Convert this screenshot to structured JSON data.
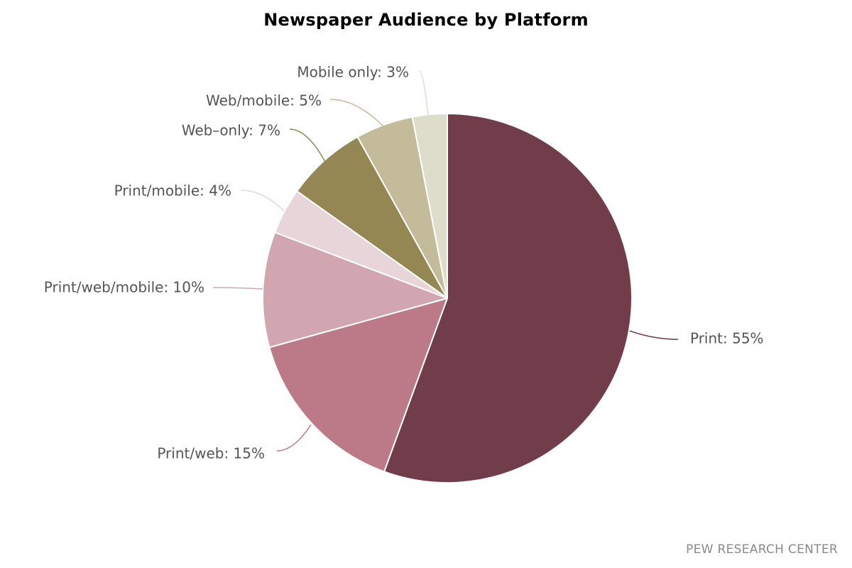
{
  "chart_data": {
    "type": "pie",
    "title": "Newspaper Audience by Platform",
    "slices": [
      {
        "label": "Print",
        "value": 55,
        "display": "Print: 55%",
        "color": "#723D4A"
      },
      {
        "label": "Print/web",
        "value": 15,
        "display": "Print/web: 15%",
        "color": "#BC7A89"
      },
      {
        "label": "Print/web/mobile",
        "value": 10,
        "display": "Print/web/mobile: 10%",
        "color": "#D2A6B0"
      },
      {
        "label": "Print/mobile",
        "value": 4,
        "display": "Print/mobile: 4%",
        "color": "#E8D5DA"
      },
      {
        "label": "Web-only",
        "value": 7,
        "display": "Web–only: 7%",
        "color": "#948754"
      },
      {
        "label": "Web/mobile",
        "value": 5,
        "display": "Web/mobile: 5%",
        "color": "#C4BB9B"
      },
      {
        "label": "Mobile only",
        "value": 3,
        "display": "Mobile only: 3%",
        "color": "#DEDCCB"
      }
    ],
    "start_angle": "12 o'clock",
    "direction": "clockwise",
    "legend": "none"
  },
  "source": "PEW RESEARCH CENTER"
}
